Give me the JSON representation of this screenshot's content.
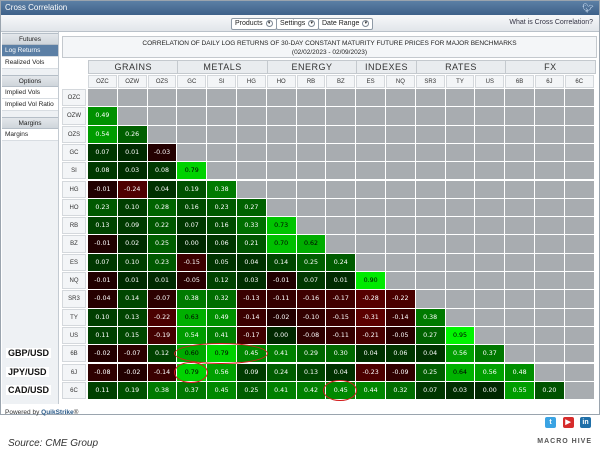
{
  "window": {
    "title": "Cross Correlation"
  },
  "toolbar": {
    "products_label": "Products",
    "settings_label": "Settings",
    "date_range_label": "Date Range",
    "what_link": "What is Cross Correlation?"
  },
  "sidebar": {
    "sections": [
      {
        "head": "Futures",
        "items": [
          "Log Returns",
          "Realized Vols"
        ]
      },
      {
        "head": "Options",
        "items": [
          "Implied Vols",
          "Implied Vol Ratio"
        ]
      },
      {
        "head": "Margins",
        "items": [
          "Margins"
        ]
      }
    ],
    "active_item": "Log Returns"
  },
  "chart_title_line1": "CORRELATION OF DAILY LOG RETURNS OF 30-DAY CONSTANT MATURITY FUTURE PRICES FOR MAJOR BENCHMARKS",
  "chart_title_line2": "(02/02/2023 - 02/09/2023)",
  "groups": [
    {
      "name": "GRAINS",
      "count": 3
    },
    {
      "name": "METALS",
      "count": 3
    },
    {
      "name": "ENERGY",
      "count": 3
    },
    {
      "name": "INDEXES",
      "count": 2
    },
    {
      "name": "RATES",
      "count": 3
    },
    {
      "name": "FX",
      "count": 3
    }
  ],
  "symbols": [
    "OZC",
    "OZW",
    "OZS",
    "GC",
    "SI",
    "HG",
    "HO",
    "RB",
    "BZ",
    "ES",
    "NQ",
    "SR3",
    "TY",
    "US",
    "6B",
    "6J",
    "6C"
  ],
  "chart_data": {
    "type": "heatmap",
    "title": "CORRELATION OF DAILY LOG RETURNS OF 30-DAY CONSTANT MATURITY FUTURE PRICES FOR MAJOR BENCHMARKS",
    "subtitle": "(02/02/2023 - 02/09/2023)",
    "rows": [
      "OZC",
      "OZW",
      "OZS",
      "GC",
      "SI",
      "HG",
      "HO",
      "RB",
      "BZ",
      "ES",
      "NQ",
      "SR3",
      "TY",
      "US",
      "6B",
      "6J",
      "6C"
    ],
    "columns": [
      "OZC",
      "OZW",
      "OZS",
      "GC",
      "SI",
      "HG",
      "HO",
      "RB",
      "BZ",
      "ES",
      "NQ",
      "SR3",
      "TY",
      "US",
      "6B",
      "6J",
      "6C"
    ],
    "lower_triangle": [
      [],
      [
        0.49
      ],
      [
        0.54,
        0.26
      ],
      [
        0.07,
        0.01,
        -0.03
      ],
      [
        0.08,
        0.03,
        0.08,
        0.79
      ],
      [
        -0.01,
        -0.24,
        0.04,
        0.19,
        0.38
      ],
      [
        0.23,
        0.1,
        0.28,
        0.16,
        0.23,
        0.27
      ],
      [
        0.13,
        0.09,
        0.22,
        0.07,
        0.16,
        0.33,
        0.73
      ],
      [
        -0.01,
        0.02,
        0.25,
        0.0,
        0.06,
        0.21,
        0.7,
        0.62
      ],
      [
        0.07,
        0.1,
        0.23,
        -0.15,
        0.05,
        0.04,
        0.14,
        0.25,
        0.24
      ],
      [
        -0.01,
        0.01,
        0.01,
        -0.05,
        0.12,
        0.03,
        -0.01,
        0.07,
        0.01,
        0.9
      ],
      [
        -0.04,
        0.14,
        -0.07,
        0.38,
        0.32,
        -0.13,
        -0.11,
        -0.16,
        -0.17,
        -0.28,
        -0.22
      ],
      [
        0.1,
        0.13,
        -0.22,
        0.63,
        0.49,
        -0.14,
        -0.02,
        -0.1,
        -0.15,
        -0.31,
        -0.14,
        0.38
      ],
      [
        0.11,
        0.15,
        -0.19,
        0.54,
        0.41,
        -0.17,
        0.0,
        -0.08,
        -0.11,
        -0.21,
        -0.05,
        0.27,
        0.95
      ],
      [
        -0.02,
        -0.07,
        0.12,
        0.6,
        0.79,
        0.45,
        0.41,
        0.29,
        0.3,
        0.04,
        0.06,
        0.04,
        0.56,
        0.37
      ],
      [
        -0.08,
        -0.02,
        -0.14,
        0.79,
        0.56,
        0.09,
        0.24,
        0.13,
        0.04,
        -0.23,
        -0.09,
        0.25,
        0.64,
        0.56,
        0.48
      ],
      [
        0.11,
        0.19,
        0.38,
        0.37,
        0.45,
        0.25,
        0.41,
        0.42,
        0.45,
        0.44,
        0.32,
        0.07,
        0.03,
        0.0,
        0.55,
        0.2
      ]
    ],
    "color_scale": {
      "negative": "#8b0000",
      "zero": "#000000",
      "positive": "#00c000"
    }
  },
  "fx_annotations": [
    {
      "label": "GBP/USD",
      "row": "6B"
    },
    {
      "label": "JPY/USD",
      "row": "6J"
    },
    {
      "label": "CAD/USD",
      "row": "6C"
    }
  ],
  "highlights": [
    {
      "row": "6B",
      "cols": [
        "GC",
        "SI",
        "HG"
      ]
    },
    {
      "row": "6J",
      "cols": [
        "GC"
      ]
    },
    {
      "row": "6C",
      "cols": [
        "BZ"
      ]
    }
  ],
  "footer": {
    "powered_by": "Powered by",
    "brand": "QuikStrike",
    "brand_mark": "®"
  },
  "social_icons": [
    "twitter-icon",
    "youtube-icon",
    "linkedin-icon"
  ],
  "source": "Source: CME Group",
  "logo": "MACRO HIVE"
}
